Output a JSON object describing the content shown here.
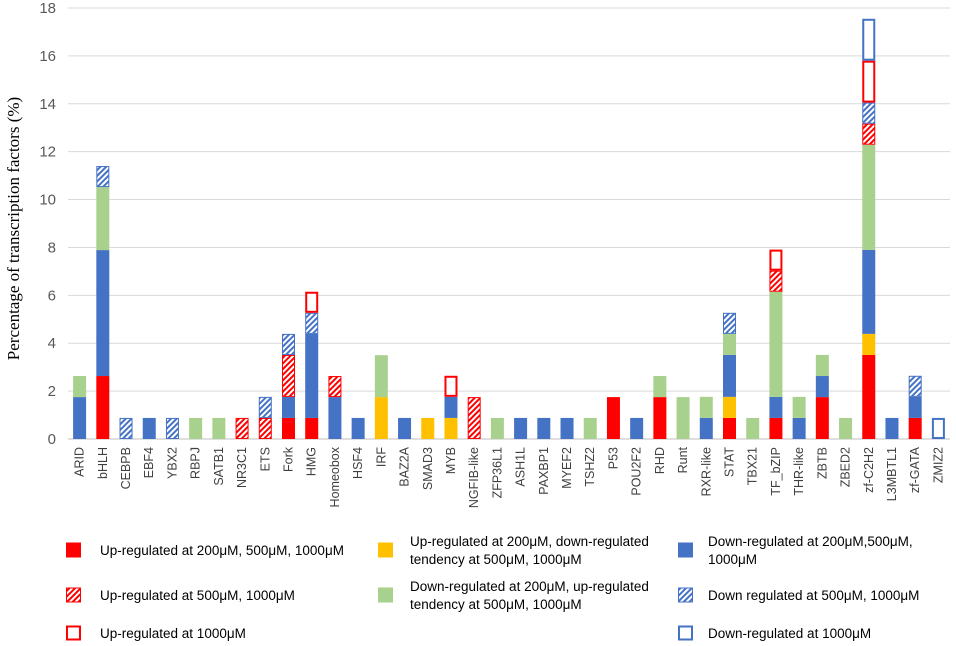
{
  "chart_data": {
    "type": "bar",
    "stacked": true,
    "title": "",
    "xlabel": "",
    "ylabel": "Percentage of transcription factors (%)",
    "ylim": [
      0,
      18
    ],
    "yticks": [
      0,
      2,
      4,
      6,
      8,
      10,
      12,
      14,
      16,
      18
    ],
    "grid": true,
    "categories": [
      "ARID",
      "bHLH",
      "CEBPB",
      "EBF4",
      "YBX2",
      "RBPJ",
      "SATB1",
      "NR3C1",
      "ETS",
      "Fork",
      "HMG",
      "Homeobox",
      "HSF4",
      "IRF",
      "BAZ2A",
      "SMAD3",
      "MYB",
      "NGFIB-like",
      "ZFP36L1",
      "ASH1L",
      "PAXBP1",
      "MYEF2",
      "TSHZ2",
      "P53",
      "POU2F2",
      "RHD",
      "Runt",
      "RXR-like",
      "STAT",
      "TBX21",
      "TF_bZIP",
      "THR-like",
      "ZBTB",
      "ZBED2",
      "zf-C2H2",
      "L3MBTL1",
      "zf-GATA",
      "ZMIZ2"
    ],
    "series": [
      {
        "name": "Up-regulated at 200μM, 500μM, 1000μM",
        "style": "solid",
        "color": "#ff0000",
        "values": [
          0,
          2.63,
          0,
          0,
          0,
          0,
          0,
          0,
          0,
          0.88,
          0.88,
          0,
          0,
          0,
          0,
          0,
          0,
          0,
          0,
          0,
          0,
          0,
          0,
          1.75,
          0,
          1.75,
          0,
          0,
          0.88,
          0,
          0.88,
          0,
          1.75,
          0,
          3.51,
          0,
          0.88,
          0
        ]
      },
      {
        "name": "Up-regulated at 200μM, down-regulated tendency at 500μM, 1000μM",
        "style": "solid",
        "color": "#ffc000",
        "values": [
          0,
          0,
          0,
          0,
          0,
          0,
          0,
          0,
          0,
          0,
          0,
          0,
          0,
          1.75,
          0,
          0.88,
          0.88,
          0,
          0,
          0,
          0,
          0,
          0,
          0,
          0,
          0,
          0,
          0,
          0.88,
          0,
          0,
          0,
          0,
          0,
          0.88,
          0,
          0,
          0
        ]
      },
      {
        "name": "Down-regulated at 200μM,500μM, 1000μM",
        "style": "solid",
        "color": "#4472c4",
        "values": [
          1.75,
          5.26,
          0,
          0.88,
          0,
          0,
          0,
          0,
          0,
          0.88,
          3.51,
          1.75,
          0.88,
          0,
          0.88,
          0,
          0.88,
          0,
          0,
          0.88,
          0.88,
          0.88,
          0,
          0,
          0.88,
          0,
          0,
          0.88,
          1.75,
          0,
          0.88,
          0.88,
          0.88,
          0,
          3.51,
          0.88,
          0.88,
          0
        ]
      },
      {
        "name": "Down-regulated at 200μM, up-regulated tendency at 500μM, 1000μM",
        "style": "solid",
        "color": "#a9d18e",
        "values": [
          0.88,
          2.63,
          0,
          0,
          0,
          0.88,
          0.88,
          0,
          0,
          0,
          0,
          0,
          0,
          1.75,
          0,
          0,
          0,
          0,
          0.88,
          0,
          0,
          0,
          0.88,
          0,
          0,
          0.88,
          1.75,
          0.88,
          0.88,
          0.88,
          4.39,
          0.88,
          0.88,
          0.88,
          4.39,
          0,
          0,
          0
        ]
      },
      {
        "name": "Up-regulated at 500μM, 1000μM",
        "style": "hatch",
        "color": "#ff0000",
        "values": [
          0,
          0,
          0,
          0,
          0,
          0,
          0,
          0.88,
          0.88,
          1.75,
          0,
          0.88,
          0,
          0,
          0,
          0,
          0,
          1.75,
          0,
          0,
          0,
          0,
          0,
          0,
          0,
          0,
          0,
          0,
          0,
          0,
          0.88,
          0,
          0,
          0,
          0.88,
          0,
          0,
          0
        ]
      },
      {
        "name": "Down regulated at 500μM, 1000μM",
        "style": "hatch",
        "color": "#4472c4",
        "values": [
          0,
          0.88,
          0.88,
          0,
          0.88,
          0,
          0,
          0,
          0.88,
          0.88,
          0.88,
          0,
          0,
          0,
          0,
          0,
          0,
          0,
          0,
          0,
          0,
          0,
          0,
          0,
          0,
          0,
          0,
          0,
          0.88,
          0,
          0,
          0,
          0,
          0,
          0.88,
          0,
          0.88,
          0
        ]
      },
      {
        "name": "Up-regulated at 1000μM",
        "style": "outline",
        "color": "#ff0000",
        "values": [
          0,
          0,
          0,
          0,
          0,
          0,
          0,
          0,
          0,
          0,
          0.88,
          0,
          0,
          0,
          0,
          0,
          0.88,
          0,
          0,
          0,
          0,
          0,
          0,
          0,
          0,
          0,
          0,
          0,
          0,
          0,
          0.88,
          0,
          0,
          0,
          1.75,
          0,
          0,
          0
        ]
      },
      {
        "name": "Down-regulated at 1000μM",
        "style": "outline",
        "color": "#4472c4",
        "values": [
          0,
          0,
          0,
          0,
          0,
          0,
          0,
          0,
          0,
          0,
          0,
          0,
          0,
          0,
          0,
          0,
          0,
          0,
          0,
          0,
          0,
          0,
          0,
          0,
          0,
          0,
          0,
          0,
          0,
          0,
          0,
          0,
          0,
          0,
          1.75,
          0,
          0,
          0.88
        ]
      }
    ],
    "legend": {
      "position": "bottom",
      "rows": [
        [
          "Up-regulated at 200μM, 500μM, 1000μM",
          "Up-regulated at 200μM, down-regulated tendency at 500μM, 1000μM",
          "Down-regulated at 200μM,500μM, 1000μM"
        ],
        [
          "Up-regulated at 500μM, 1000μM",
          "Down-regulated at 200μM, up-regulated tendency at 500μM, 1000μM",
          "Down regulated at 500μM, 1000μM"
        ],
        [
          "Up-regulated at 1000μM",
          "",
          "Down-regulated at 1000μM"
        ]
      ]
    }
  }
}
